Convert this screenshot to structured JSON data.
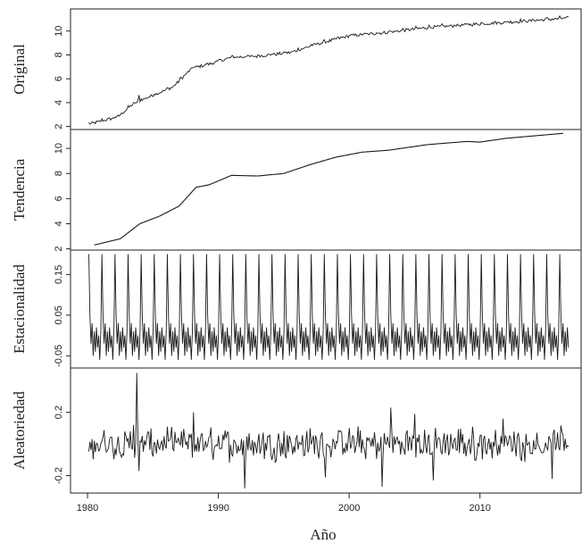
{
  "chart_data": {
    "type": "line",
    "title": "",
    "xlabel": "Año",
    "xlim": [
      1978.7,
      2017.8
    ],
    "x_ticks": [
      1980,
      1990,
      2000,
      2010
    ],
    "x_tick_labels": [
      "1980",
      "1990",
      "2000",
      "2010"
    ],
    "start": 1980.1,
    "frequency": 12,
    "panels": [
      {
        "name": "Original",
        "ylim": [
          1.75,
          11.85
        ],
        "y_ticks": [
          2,
          4,
          6,
          8,
          10
        ],
        "y_tick_labels": [
          "2",
          "4",
          "6",
          "8",
          "10"
        ],
        "trend_knots": [
          [
            1980.1,
            2.2
          ],
          [
            1982.3,
            2.8
          ],
          [
            1983.5,
            3.9
          ],
          [
            1984.5,
            4.4
          ],
          [
            1986.5,
            5.3
          ],
          [
            1988.0,
            6.9
          ],
          [
            1989.2,
            7.2
          ],
          [
            1991.0,
            7.8
          ],
          [
            1993.0,
            7.9
          ],
          [
            1995.5,
            8.2
          ],
          [
            1997.5,
            8.9
          ],
          [
            2000.0,
            9.6
          ],
          [
            2003.0,
            9.9
          ],
          [
            2006.0,
            10.3
          ],
          [
            2010.0,
            10.6
          ],
          [
            2013.0,
            10.8
          ],
          [
            2016.8,
            11.1
          ]
        ],
        "seasonal_amplitude": 0.1,
        "noise_amplitude": 0.12
      },
      {
        "name": "Tendencia",
        "ylim": [
          1.9,
          11.5
        ],
        "y_ticks": [
          2,
          4,
          6,
          8,
          10
        ],
        "y_tick_labels": [
          "2",
          "4",
          "6",
          "8",
          "10"
        ],
        "start": 1980.5,
        "end": 2016.4,
        "values_knots": [
          [
            1980.5,
            2.3
          ],
          [
            1982.5,
            2.8
          ],
          [
            1984.0,
            4.0
          ],
          [
            1985.5,
            4.6
          ],
          [
            1987.0,
            5.4
          ],
          [
            1988.3,
            6.9
          ],
          [
            1989.3,
            7.1
          ],
          [
            1991.0,
            7.85
          ],
          [
            1993.0,
            7.8
          ],
          [
            1995.0,
            8.0
          ],
          [
            1997.0,
            8.7
          ],
          [
            1999.0,
            9.3
          ],
          [
            2001.0,
            9.7
          ],
          [
            2003.0,
            9.85
          ],
          [
            2006.0,
            10.3
          ],
          [
            2009.0,
            10.55
          ],
          [
            2010.0,
            10.5
          ],
          [
            2012.0,
            10.8
          ],
          [
            2016.4,
            11.2
          ]
        ]
      },
      {
        "name": "Estacionalidad",
        "ylim": [
          -0.08,
          0.21
        ],
        "y_ticks": [
          -0.05,
          0.05,
          0.15
        ],
        "y_tick_labels": [
          "-0.05",
          "0.05",
          "0.15"
        ],
        "monthly_pattern": [
          0.2,
          0.05,
          -0.02,
          0.03,
          -0.05,
          0.01,
          -0.04,
          0.02,
          -0.03,
          0.0,
          -0.06,
          0.01
        ]
      },
      {
        "name": "Aleatoriedad",
        "ylim": [
          -0.31,
          0.48
        ],
        "y_ticks": [
          -0.2,
          0.2
        ],
        "y_tick_labels": [
          "-0.2",
          "0.2"
        ],
        "noise_amplitude": 0.075,
        "spikes": [
          [
            1983.8,
            0.45
          ],
          [
            1983.9,
            -0.17
          ],
          [
            1983.5,
            0.12
          ],
          [
            1992.0,
            -0.28
          ],
          [
            2002.5,
            -0.27
          ],
          [
            2003.2,
            0.23
          ],
          [
            2006.4,
            -0.23
          ],
          [
            2011.8,
            0.16
          ],
          [
            2015.5,
            -0.22
          ],
          [
            1998.2,
            -0.21
          ],
          [
            1988.1,
            0.2
          ],
          [
            2005.0,
            0.19
          ]
        ]
      }
    ]
  }
}
